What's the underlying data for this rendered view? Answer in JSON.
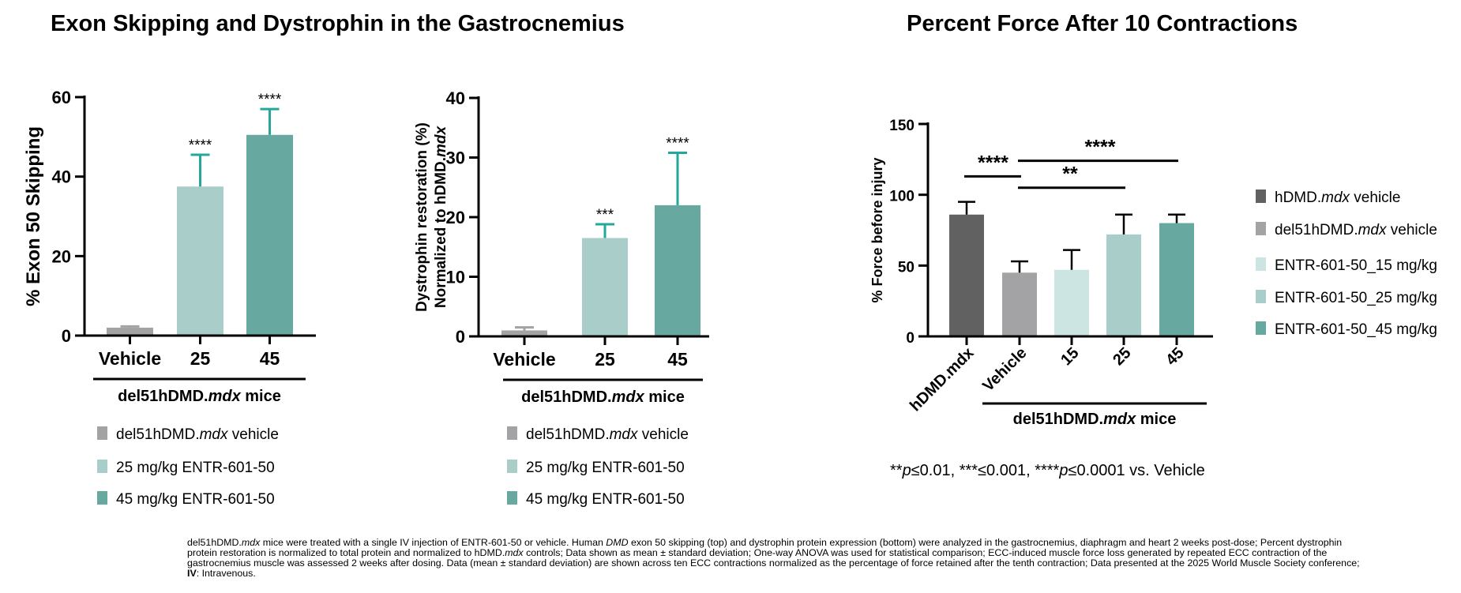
{
  "titles": {
    "left": "Exon Skipping and Dystrophin in the Gastrocnemius",
    "right": "Percent Force After 10 Contractions"
  },
  "colors": {
    "hdmd_vehicle": "#616161",
    "del51_vehicle": "#a3a3a6",
    "dose_15": "#cde5e2",
    "dose_25": "#a9cdc9",
    "dose_45": "#67a8a0",
    "error_teal": "#25a79c",
    "error_dark": "#000000"
  },
  "chart_data": [
    {
      "type": "bar",
      "ylabel": "% Exon 50 Skipping",
      "ylim": [
        0,
        60
      ],
      "yticks": [
        "0",
        "20",
        "40",
        "60"
      ],
      "categories": [
        "Vehicle",
        "25",
        "45"
      ],
      "values": [
        2,
        37.5,
        50.5
      ],
      "errors": [
        0.3,
        8,
        6.5
      ],
      "significance": [
        "",
        "****",
        "****"
      ],
      "group_label_pre": "del51hDMD.",
      "group_label_em": "mdx",
      "group_label_post": " mice",
      "legend": [
        {
          "pre": "del51hDMD.",
          "em": "mdx",
          "post": " vehicle"
        },
        {
          "pre": "25 mg/kg  ENTR-601-50",
          "em": "",
          "post": ""
        },
        {
          "pre": "45 mg/kg  ENTR-601-50",
          "em": "",
          "post": ""
        }
      ]
    },
    {
      "type": "bar",
      "ylabel_line1": "Dystrophin restoration  (%)",
      "ylabel_line2_pre": "Normalized to hDMD.",
      "ylabel_line2_em": "mdx",
      "ylim": [
        0,
        40
      ],
      "yticks": [
        "0",
        "10",
        "20",
        "30",
        "40"
      ],
      "categories": [
        "Vehicle",
        "25",
        "45"
      ],
      "values": [
        1,
        16.5,
        22
      ],
      "errors": [
        0.5,
        2.3,
        8.8
      ],
      "significance": [
        "",
        "***",
        "****"
      ],
      "group_label_pre": "del51hDMD.",
      "group_label_em": "mdx",
      "group_label_post": " mice",
      "legend": [
        {
          "pre": "del51hDMD.",
          "em": "mdx",
          "post": " vehicle"
        },
        {
          "pre": "25 mg/kg  ENTR-601-50",
          "em": "",
          "post": ""
        },
        {
          "pre": "45 mg/kg  ENTR-601-50",
          "em": "",
          "post": ""
        }
      ]
    },
    {
      "type": "bar",
      "ylabel": "% Force before injury",
      "ylim": [
        0,
        150
      ],
      "yticks": [
        "0",
        "50",
        "100",
        "150"
      ],
      "categories": [
        "hDMD.mdx",
        "Vehicle",
        "15",
        "25",
        "45"
      ],
      "values": [
        86,
        45,
        47,
        72,
        80
      ],
      "errors": [
        9,
        8,
        14,
        14,
        6
      ],
      "group_label_pre": "del51hDMD.",
      "group_label_em": "mdx",
      "group_label_post": " mice",
      "brackets": [
        {
          "from": 0,
          "to": 1,
          "label": "****",
          "y": 113
        },
        {
          "from": 1,
          "to": 4,
          "label": "****",
          "y": 124
        },
        {
          "from": 1,
          "to": 3,
          "label": "**",
          "y": 105
        }
      ],
      "legend": [
        {
          "pre": "hDMD.",
          "em": "mdx",
          "post": " vehicle"
        },
        {
          "pre": "del51hDMD.",
          "em": "mdx",
          "post": " vehicle"
        },
        {
          "pre": "ENTR-601-50_15 mg/kg",
          "em": "",
          "post": ""
        },
        {
          "pre": "ENTR-601-50_25 mg/kg",
          "em": "",
          "post": ""
        },
        {
          "pre": "ENTR-601-50_45 mg/kg",
          "em": "",
          "post": ""
        }
      ]
    }
  ],
  "significance_note": {
    "p1": "**",
    "p1_em": "p",
    "p1_rest": "≤0.01, ***≤0.001, ****",
    "p2_em": "p",
    "p2_rest": "≤0.0001 vs. Vehicle"
  },
  "footnote": {
    "s1_pre": "del51hDMD.",
    "s1_em": "mdx",
    "s1_mid": " mice were treated with a single IV injection of ENTR-601-50 or vehicle. Human ",
    "s1_em2": "DMD",
    "s1_mid2": " exon 50 skipping (top) and dystrophin protein expression (bottom) were analyzed in the gastrocnemius, diaphragm and heart 2 weeks post-dose; Percent dystrophin protein restoration is normalized to total protein and normalized to hDMD.",
    "s1_em3": "mdx",
    "s1_post": " controls; Data shown as mean ± standard deviation; One-way ANOVA was used for statistical comparison; ECC-induced muscle force loss generated by repeated ECC contraction of the gastrocnemius muscle was assessed 2 weeks after dosing. Data (mean ± standard deviation) are shown across ten ECC contractions normalized as the percentage of force retained after the tenth contraction; Data presented at the 2025 World Muscle Society conference; ",
    "iv_bold": "IV",
    "s1_end": ": Intravenous."
  }
}
